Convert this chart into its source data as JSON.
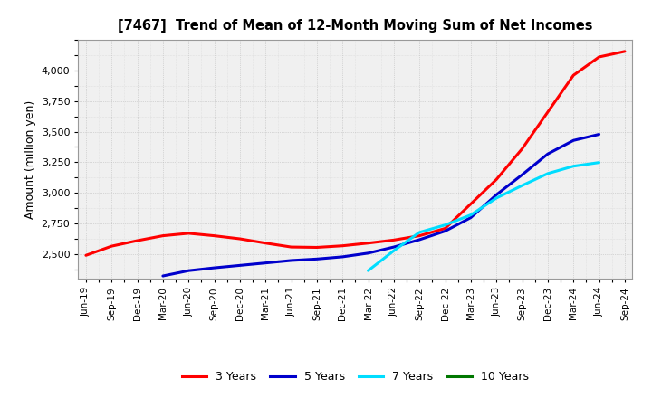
{
  "title": "[7467]  Trend of Mean of 12-Month Moving Sum of Net Incomes",
  "ylabel": "Amount (million yen)",
  "background_color": "#ffffff",
  "plot_bg_color": "#f0f0f0",
  "grid_color": "#bbbbbb",
  "x_labels": [
    "Jun-19",
    "Sep-19",
    "Dec-19",
    "Mar-20",
    "Jun-20",
    "Sep-20",
    "Dec-20",
    "Mar-21",
    "Jun-21",
    "Sep-21",
    "Dec-21",
    "Mar-22",
    "Jun-22",
    "Sep-22",
    "Dec-22",
    "Mar-23",
    "Jun-23",
    "Sep-23",
    "Dec-23",
    "Mar-24",
    "Jun-24",
    "Sep-24"
  ],
  "ylim": [
    2300,
    4250
  ],
  "yticks": [
    2500,
    2750,
    3000,
    3250,
    3500,
    3750,
    4000
  ],
  "series": [
    {
      "label": "3 Years",
      "color": "#ff0000",
      "data_y": [
        2490,
        2565,
        2610,
        2650,
        2670,
        2650,
        2625,
        2590,
        2558,
        2555,
        2568,
        2590,
        2615,
        2650,
        2710,
        2910,
        3110,
        3360,
        3660,
        3960,
        4110,
        4155
      ]
    },
    {
      "label": "5 Years",
      "color": "#0000cc",
      "data_y": [
        null,
        null,
        null,
        2322,
        2365,
        2388,
        2408,
        2428,
        2448,
        2460,
        2478,
        2508,
        2558,
        2618,
        2688,
        2798,
        2985,
        3148,
        3318,
        3428,
        3478,
        null
      ]
    },
    {
      "label": "7 Years",
      "color": "#00ddff",
      "data_y": [
        null,
        null,
        null,
        null,
        null,
        null,
        null,
        null,
        null,
        null,
        null,
        2365,
        2528,
        2678,
        2738,
        2820,
        2958,
        3060,
        3158,
        3218,
        3248,
        null
      ]
    },
    {
      "label": "10 Years",
      "color": "#007700",
      "data_y": [
        null,
        null,
        null,
        null,
        null,
        null,
        null,
        null,
        null,
        null,
        null,
        null,
        null,
        null,
        null,
        null,
        null,
        null,
        null,
        null,
        null,
        null
      ]
    }
  ],
  "legend_labels": [
    "3 Years",
    "5 Years",
    "7 Years",
    "10 Years"
  ],
  "legend_colors": [
    "#ff0000",
    "#0000cc",
    "#00ddff",
    "#007700"
  ]
}
